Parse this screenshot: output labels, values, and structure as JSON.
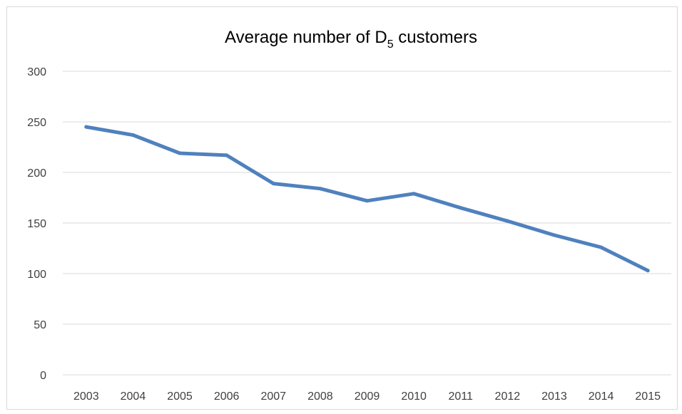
{
  "chart_data": {
    "type": "line",
    "title": {
      "prefix": "Average number of D",
      "subscript": "5",
      "suffix": " customers"
    },
    "xlabel": "",
    "ylabel": "",
    "categories": [
      "2003",
      "2004",
      "2005",
      "2006",
      "2007",
      "2008",
      "2009",
      "2010",
      "2011",
      "2012",
      "2013",
      "2014",
      "2015"
    ],
    "series": [
      {
        "values": [
          245,
          237,
          219,
          217,
          189,
          184,
          172,
          179,
          165,
          152,
          138,
          126,
          103
        ]
      }
    ],
    "ylim": [
      0,
      300
    ],
    "yticks": [
      "0",
      "50",
      "100",
      "150",
      "200",
      "250",
      "300"
    ],
    "grid": true,
    "legend": "none",
    "colors": {
      "line": "#4f81bd",
      "gridline": "#d9d9d9",
      "axis": "#d9d9d9",
      "text": "#404040"
    }
  }
}
